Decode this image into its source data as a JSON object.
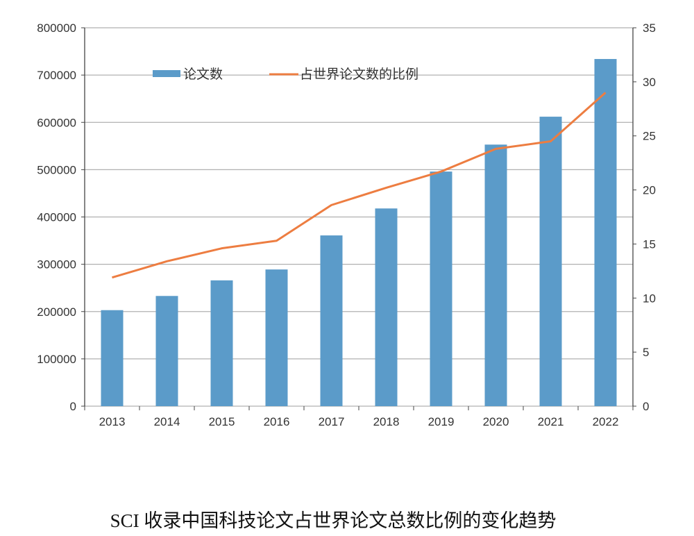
{
  "chart_data": {
    "type": "bar+line",
    "caption": "SCI 收录中国科技论文占世界论文总数比例的变化趋势",
    "categories": [
      "2013",
      "2014",
      "2015",
      "2016",
      "2017",
      "2018",
      "2019",
      "2020",
      "2021",
      "2022"
    ],
    "series": [
      {
        "name": "论文数",
        "type": "bar",
        "axis": "left",
        "color": "#5B9BC9",
        "values": [
          203000,
          233000,
          266000,
          289000,
          361000,
          418000,
          496000,
          553000,
          612000,
          734000
        ]
      },
      {
        "name": "占世界论文数的比例",
        "type": "line",
        "axis": "right",
        "color": "#ED7D41",
        "values": [
          11.9,
          13.4,
          14.6,
          15.3,
          18.6,
          20.2,
          21.7,
          23.8,
          24.5,
          29.0
        ]
      }
    ],
    "left_axis": {
      "ylim": [
        0,
        800000
      ],
      "ticks": [
        "0",
        "100000",
        "200000",
        "300000",
        "400000",
        "500000",
        "600000",
        "700000",
        "800000"
      ]
    },
    "right_axis": {
      "ylim": [
        0,
        35
      ],
      "ticks": [
        "0",
        "5",
        "10",
        "15",
        "20",
        "25",
        "30",
        "35"
      ]
    },
    "grid": true,
    "legend_position": "top-left"
  }
}
